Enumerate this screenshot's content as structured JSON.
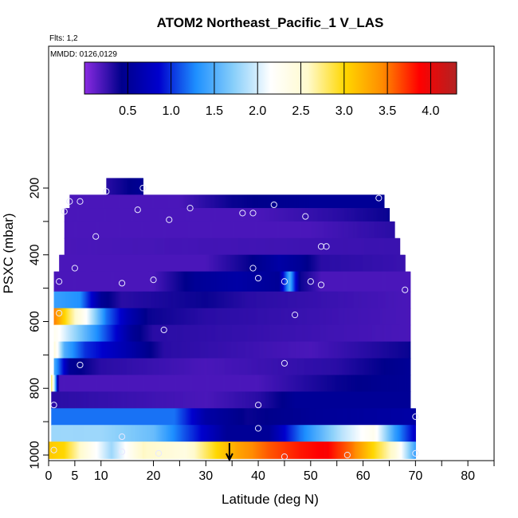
{
  "chart_data": {
    "type": "heatmap",
    "title": "ATOM2 Northeast_Pacific_1 V_LAS",
    "flights_label": "Flts: 1,2",
    "dates_label": "MMDD: 0126,0129",
    "xlabel": "Latitude (deg N)",
    "ylabel": "PSXC (mbar)",
    "xlim": [
      0,
      85
    ],
    "ylim": [
      1000,
      0
    ],
    "x_ticks": [
      0,
      5,
      10,
      20,
      30,
      40,
      50,
      60,
      70,
      80
    ],
    "y_ticks": [
      200,
      400,
      600,
      800,
      1000
    ],
    "colorbar": {
      "range": [
        0,
        4.3
      ],
      "ticks": [
        0.5,
        1.0,
        1.5,
        2.0,
        2.5,
        3.0,
        3.5,
        4.0
      ],
      "tick_labels": [
        "0.5",
        "1.0",
        "1.5",
        "2.0",
        "2.5",
        "3.0",
        "3.5",
        "4.0"
      ],
      "colors": [
        "#8a2be2",
        "#00008b",
        "#0000cd",
        "#1e90ff",
        "#87cefa",
        "#ffffff",
        "#fffacd",
        "#ffd700",
        "#ff8c00",
        "#ff0000",
        "#b22222"
      ]
    },
    "marker_latitude": 34.5,
    "rows": [
      {
        "p_top": 170,
        "p_bot": 220,
        "x0": 11,
        "x1": 18,
        "stops": [
          [
            11,
            0.3
          ],
          [
            18,
            0.5
          ]
        ]
      },
      {
        "p_top": 220,
        "p_bot": 260,
        "x0": 4,
        "x1": 64,
        "stops": [
          [
            4,
            0.2
          ],
          [
            25,
            0.2
          ],
          [
            35,
            0.4
          ],
          [
            50,
            0.5
          ],
          [
            64,
            0.5
          ]
        ]
      },
      {
        "p_top": 260,
        "p_bot": 300,
        "x0": 3,
        "x1": 65,
        "stops": [
          [
            3,
            0.2
          ],
          [
            40,
            0.2
          ],
          [
            55,
            0.3
          ],
          [
            65,
            0.4
          ]
        ]
      },
      {
        "p_top": 300,
        "p_bot": 350,
        "x0": 3,
        "x1": 66,
        "stops": [
          [
            3,
            0.2
          ],
          [
            50,
            0.2
          ],
          [
            66,
            0.3
          ]
        ]
      },
      {
        "p_top": 350,
        "p_bot": 400,
        "x0": 3,
        "x1": 67,
        "stops": [
          [
            3,
            0.2
          ],
          [
            67,
            0.25
          ]
        ]
      },
      {
        "p_top": 400,
        "p_bot": 450,
        "x0": 2,
        "x1": 68,
        "stops": [
          [
            2,
            0.2
          ],
          [
            30,
            0.2
          ],
          [
            38,
            0.4
          ],
          [
            44,
            0.6
          ],
          [
            48,
            0.5
          ],
          [
            52,
            0.3
          ],
          [
            68,
            0.25
          ]
        ]
      },
      {
        "p_top": 450,
        "p_bot": 510,
        "x0": 1,
        "x1": 69,
        "stops": [
          [
            1,
            0.2
          ],
          [
            20,
            0.2
          ],
          [
            28,
            0.5
          ],
          [
            36,
            0.6
          ],
          [
            44,
            0.5
          ],
          [
            46,
            1.5
          ],
          [
            48,
            0.4
          ],
          [
            52,
            0.2
          ],
          [
            69,
            0.2
          ]
        ]
      },
      {
        "p_top": 510,
        "p_bot": 560,
        "x0": 1,
        "x1": 69,
        "stops": [
          [
            1,
            1.4
          ],
          [
            6,
            1.3
          ],
          [
            10,
            0.5
          ],
          [
            14,
            0.3
          ],
          [
            30,
            0.4
          ],
          [
            38,
            0.3
          ],
          [
            69,
            0.2
          ]
        ]
      },
      {
        "p_top": 560,
        "p_bot": 610,
        "x0": 1,
        "x1": 69,
        "stops": [
          [
            1,
            3.5
          ],
          [
            4,
            2.8
          ],
          [
            7,
            2.2
          ],
          [
            11,
            1.2
          ],
          [
            15,
            0.7
          ],
          [
            19,
            0.4
          ],
          [
            30,
            0.3
          ],
          [
            69,
            0.2
          ]
        ]
      },
      {
        "p_top": 610,
        "p_bot": 660,
        "x0": 1,
        "x1": 69,
        "stops": [
          [
            1,
            2.3
          ],
          [
            4,
            1.9
          ],
          [
            10,
            1.2
          ],
          [
            16,
            0.5
          ],
          [
            20,
            0.3
          ],
          [
            69,
            0.2
          ]
        ]
      },
      {
        "p_top": 660,
        "p_bot": 710,
        "x0": 1,
        "x1": 69,
        "stops": [
          [
            1,
            2.5
          ],
          [
            3,
            1.5
          ],
          [
            7,
            1.0
          ],
          [
            14,
            0.7
          ],
          [
            22,
            0.3
          ],
          [
            50,
            0.2
          ],
          [
            60,
            0.3
          ],
          [
            69,
            0.4
          ]
        ]
      },
      {
        "p_top": 710,
        "p_bot": 760,
        "x0": 1,
        "x1": 69,
        "stops": [
          [
            1,
            1.5
          ],
          [
            4,
            0.5
          ],
          [
            10,
            0.3
          ],
          [
            30,
            0.2
          ],
          [
            55,
            0.3
          ],
          [
            69,
            0.5
          ]
        ]
      },
      {
        "p_top": 760,
        "p_bot": 810,
        "x0": 0.5,
        "x1": 69,
        "stops": [
          [
            0.5,
            3.0
          ],
          [
            2,
            0.2
          ],
          [
            40,
            0.2
          ],
          [
            55,
            0.4
          ],
          [
            69,
            0.5
          ]
        ]
      },
      {
        "p_top": 810,
        "p_bot": 860,
        "x0": 0.5,
        "x1": 69,
        "stops": [
          [
            0.5,
            0.3
          ],
          [
            30,
            0.2
          ],
          [
            40,
            0.3
          ],
          [
            47,
            0.5
          ],
          [
            69,
            0.5
          ]
        ]
      },
      {
        "p_top": 860,
        "p_bot": 910,
        "x0": 0.5,
        "x1": 70,
        "stops": [
          [
            0.5,
            1.2
          ],
          [
            24,
            1.2
          ],
          [
            30,
            0.6
          ],
          [
            38,
            0.4
          ],
          [
            50,
            0.5
          ],
          [
            70,
            0.6
          ]
        ]
      },
      {
        "p_top": 910,
        "p_bot": 960,
        "x0": 0.5,
        "x1": 70,
        "stops": [
          [
            0.5,
            1.8
          ],
          [
            10,
            1.8
          ],
          [
            20,
            1.6
          ],
          [
            26,
            1.1
          ],
          [
            34,
            0.5
          ],
          [
            42,
            0.5
          ],
          [
            48,
            1.2
          ],
          [
            56,
            1.9
          ],
          [
            62,
            2.3
          ],
          [
            66,
            1.4
          ],
          [
            70,
            0.8
          ]
        ]
      },
      {
        "p_top": 960,
        "p_bot": 1010,
        "x0": 0,
        "x1": 70,
        "stops": [
          [
            0,
            3.1
          ],
          [
            3,
            3.0
          ],
          [
            8,
            2.3
          ],
          [
            12,
            1.8
          ],
          [
            18,
            2.6
          ],
          [
            26,
            2.4
          ],
          [
            32,
            3.0
          ],
          [
            36,
            3.3
          ],
          [
            42,
            3.6
          ],
          [
            48,
            3.8
          ],
          [
            53,
            3.9
          ],
          [
            58,
            3.5
          ],
          [
            62,
            3.0
          ],
          [
            66,
            2.5
          ],
          [
            70,
            1.4
          ]
        ]
      }
    ],
    "points": [
      [
        11,
        210
      ],
      [
        18,
        200
      ],
      [
        4,
        240
      ],
      [
        6,
        240
      ],
      [
        3,
        270
      ],
      [
        17,
        265
      ],
      [
        27,
        260
      ],
      [
        23,
        295
      ],
      [
        37,
        275
      ],
      [
        39,
        275
      ],
      [
        43,
        250
      ],
      [
        49,
        285
      ],
      [
        63,
        230
      ],
      [
        9,
        345
      ],
      [
        52,
        375
      ],
      [
        53,
        375
      ],
      [
        5,
        440
      ],
      [
        39,
        440
      ],
      [
        2,
        480
      ],
      [
        14,
        485
      ],
      [
        20,
        475
      ],
      [
        40,
        470
      ],
      [
        45,
        480
      ],
      [
        50,
        480
      ],
      [
        52,
        490
      ],
      [
        68,
        505
      ],
      [
        2,
        575
      ],
      [
        47,
        580
      ],
      [
        22,
        625
      ],
      [
        6,
        730
      ],
      [
        45,
        725
      ],
      [
        1,
        850
      ],
      [
        40,
        850
      ],
      [
        70,
        885
      ],
      [
        40,
        920
      ],
      [
        14,
        945
      ],
      [
        1,
        985
      ],
      [
        14,
        990
      ],
      [
        21,
        995
      ],
      [
        45,
        1005
      ],
      [
        57,
        1000
      ],
      [
        70,
        995
      ]
    ]
  }
}
